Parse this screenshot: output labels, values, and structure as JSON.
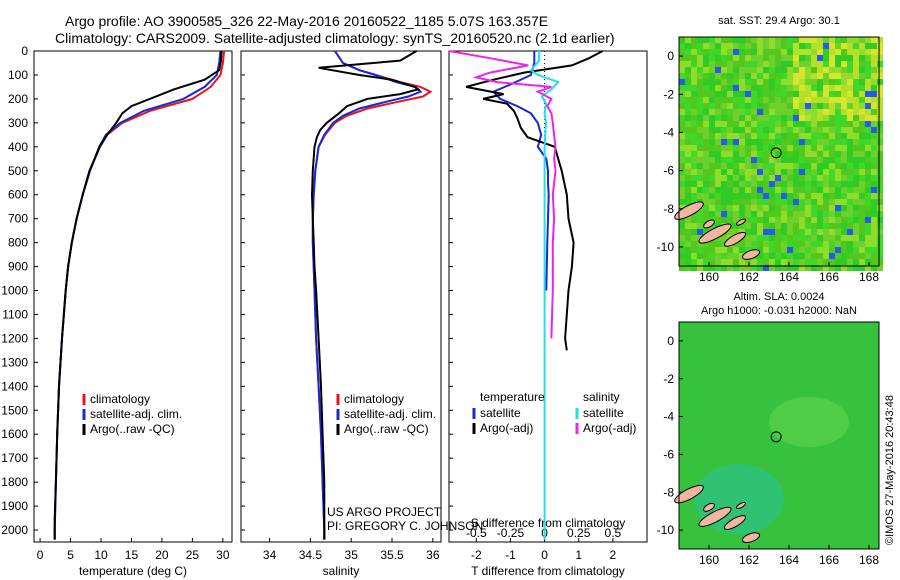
{
  "header": {
    "line1": "Argo profile: AO 3900585_326 22-May-2016 20160522_1185 5.07S 163.357E",
    "line2": "Climatology: CARS2009. Satellite-adjusted climatology: synTS_20160520.nc (2.1d earlier)"
  },
  "depth_ticks": [
    0,
    100,
    200,
    300,
    400,
    500,
    600,
    700,
    800,
    900,
    1000,
    1100,
    1200,
    1300,
    1400,
    1500,
    1600,
    1700,
    1800,
    1900,
    2000
  ],
  "colors": {
    "climatology": "#e8141a",
    "satellite": "#1428dc",
    "argo": "#000000",
    "sat_salinity": "#22e0e8",
    "argo_salinity": "#ee22ee"
  },
  "chart_data": [
    {
      "type": "line",
      "panel": "temperature",
      "xlabel": "temperature (deg C)",
      "ylabel": "",
      "xlim": [
        -1,
        31.5
      ],
      "ylim": [
        2050,
        0
      ],
      "xticks": [
        0,
        5,
        10,
        15,
        20,
        25,
        30
      ],
      "legend": [
        "climatology",
        "satellite-adj. clim.",
        "Argo(..raw -QC)"
      ],
      "legend_position": "lower-center",
      "series": [
        {
          "name": "climatology",
          "color": "#e8141a",
          "depth": [
            0,
            50,
            100,
            150,
            200,
            250,
            300,
            350,
            400,
            500,
            600,
            700,
            800,
            900,
            1000,
            1200,
            1400,
            1600,
            1800,
            2000,
            2040
          ],
          "values": [
            30.2,
            30.0,
            29.6,
            28.0,
            25.0,
            18.0,
            13.5,
            11.0,
            9.8,
            8.2,
            7.0,
            6.0,
            5.2,
            4.6,
            4.2,
            3.6,
            3.1,
            2.8,
            2.6,
            2.4,
            2.4
          ]
        },
        {
          "name": "satellite-adj. clim.",
          "color": "#1428dc",
          "depth": [
            0,
            50,
            100,
            150,
            200,
            250,
            300,
            350,
            400,
            500,
            600,
            700,
            800,
            900,
            1000,
            1200,
            1400,
            1600,
            1800,
            2000,
            2040
          ],
          "values": [
            29.6,
            29.4,
            29.0,
            27.0,
            23.5,
            17.0,
            13.2,
            10.8,
            9.7,
            8.2,
            7.0,
            6.0,
            5.2,
            4.6,
            4.2,
            3.6,
            3.1,
            2.8,
            2.6,
            2.4,
            2.4
          ]
        },
        {
          "name": "Argo(..raw -QC)",
          "color": "#000000",
          "depth": [
            0,
            40,
            80,
            120,
            160,
            200,
            230,
            260,
            300,
            350,
            400,
            500,
            600,
            700,
            800,
            900,
            1000,
            1200,
            1400,
            1600,
            1800,
            1950,
            2040
          ],
          "values": [
            29.8,
            29.7,
            29.4,
            27.0,
            22.0,
            18.0,
            15.0,
            13.5,
            12.5,
            11.0,
            9.8,
            8.1,
            7.0,
            6.0,
            5.2,
            4.6,
            4.2,
            3.6,
            3.1,
            2.8,
            2.6,
            2.4,
            2.4
          ]
        }
      ]
    },
    {
      "type": "line",
      "panel": "salinity",
      "xlabel": "salinity",
      "ylabel": "",
      "xlim": [
        33.65,
        36.1
      ],
      "ylim": [
        2050,
        0
      ],
      "xticks": [
        34,
        34.5,
        35,
        35.5,
        36
      ],
      "xtick_labels": [
        "34",
        "34.5",
        "35",
        "35.5",
        "36"
      ],
      "legend": [
        "climatology",
        "satellite-adj. clim.",
        "Argo(..raw -QC)"
      ],
      "legend_position": "lower-center",
      "annotation": [
        "US ARGO PROJECT",
        "PI: GREGORY C. JOHNSON"
      ],
      "series": [
        {
          "name": "climatology",
          "color": "#e8141a",
          "depth": [
            0,
            50,
            80,
            100,
            130,
            150,
            170,
            190,
            210,
            240,
            270,
            300,
            350,
            400,
            500,
            600,
            700,
            800,
            900,
            1000,
            1200,
            1400,
            1600,
            1800,
            2000,
            2040
          ],
          "values": [
            34.8,
            34.9,
            35.1,
            35.3,
            35.6,
            35.85,
            35.97,
            35.88,
            35.6,
            35.2,
            34.95,
            34.8,
            34.68,
            34.6,
            34.56,
            34.54,
            34.53,
            34.53,
            34.54,
            34.55,
            34.57,
            34.6,
            34.63,
            34.65,
            34.67,
            34.67
          ]
        },
        {
          "name": "satellite-adj. clim.",
          "color": "#1428dc",
          "depth": [
            0,
            50,
            80,
            100,
            130,
            150,
            170,
            190,
            210,
            240,
            270,
            300,
            350,
            400,
            500,
            600,
            700,
            800,
            900,
            1000,
            1200,
            1400,
            1600,
            1800,
            2000,
            2040
          ],
          "values": [
            34.8,
            34.9,
            35.1,
            35.3,
            35.55,
            35.78,
            35.85,
            35.7,
            35.45,
            35.1,
            34.9,
            34.78,
            34.67,
            34.6,
            34.56,
            34.54,
            34.53,
            34.53,
            34.54,
            34.55,
            34.57,
            34.6,
            34.63,
            34.65,
            34.67,
            34.67
          ]
        },
        {
          "name": "Argo(..raw -QC)",
          "color": "#000000",
          "depth": [
            0,
            40,
            70,
            100,
            120,
            150,
            160,
            180,
            200,
            230,
            260,
            300,
            330,
            360,
            400,
            500,
            600,
            700,
            800,
            900,
            1000,
            1200,
            1400,
            1600,
            1800,
            2000,
            2040
          ],
          "values": [
            35.8,
            35.6,
            34.6,
            35.1,
            35.5,
            35.78,
            35.82,
            35.6,
            35.2,
            34.95,
            34.85,
            34.7,
            34.62,
            34.58,
            34.55,
            34.53,
            34.52,
            34.53,
            34.54,
            34.55,
            34.57,
            34.6,
            34.63,
            34.65,
            34.67,
            34.67,
            34.67
          ]
        }
      ]
    },
    {
      "type": "line",
      "panel": "differences",
      "xlabel": "T difference from climatology",
      "xlabel_top": "S difference from climatology",
      "xlim": [
        -2.8,
        3.0
      ],
      "ylim": [
        2050,
        0
      ],
      "xticks": [
        -2,
        -1,
        0,
        1,
        2
      ],
      "xticks_s": [
        -0.5,
        -0.25,
        0,
        0.25,
        0.5
      ],
      "xtick_labels_s": [
        "-0.5",
        "-0.25",
        "0",
        "0.25",
        "0.5"
      ],
      "legend_temperature_title": "temperature",
      "legend_salinity_title": "salinity",
      "legend_temperature": [
        "satellite",
        "Argo(-adj)"
      ],
      "legend_salinity": [
        "satellite",
        "Argo(-adj)"
      ],
      "series": [
        {
          "name": "satellite",
          "group": "temperature",
          "color": "#1428dc",
          "depth": [
            0,
            50,
            100,
            140,
            170,
            200,
            230,
            260,
            300,
            350,
            400,
            450,
            500,
            550,
            600,
            700,
            800,
            1000
          ],
          "values": [
            -0.3,
            -0.3,
            -0.4,
            -1.0,
            -1.5,
            -1.3,
            -0.8,
            -0.4,
            -0.2,
            -0.1,
            -0.2,
            0.05,
            0.1,
            0.1,
            0.12,
            0.1,
            0.08,
            0.05
          ]
        },
        {
          "name": "Argo(-adj)",
          "group": "temperature",
          "color": "#000000",
          "depth": [
            0,
            30,
            60,
            90,
            120,
            150,
            180,
            200,
            220,
            250,
            280,
            320,
            360,
            400,
            450,
            500,
            600,
            700,
            800,
            900,
            1000,
            1100,
            1200,
            1250
          ],
          "values": [
            1.7,
            1.3,
            0.8,
            -0.6,
            -1.5,
            -2.3,
            -1.2,
            -1.8,
            -1.1,
            -0.9,
            -0.8,
            -0.7,
            -0.5,
            0.3,
            0.4,
            0.5,
            0.65,
            0.7,
            0.85,
            0.8,
            0.7,
            0.65,
            0.6,
            0.65
          ]
        },
        {
          "name": "satellite",
          "group": "salinity",
          "color": "#22e0e8",
          "depth": [
            0,
            40,
            80,
            100,
            130,
            160,
            190,
            220,
            260,
            300,
            400,
            600,
            800,
            1000,
            1400,
            1800,
            2040
          ],
          "values": [
            -0.04,
            -0.04,
            -0.1,
            -0.05,
            0.1,
            0.05,
            -0.02,
            0.01,
            0.0,
            0.01,
            0.0,
            0.0,
            0.0,
            0.0,
            0.0,
            0.0,
            0.0
          ]
        },
        {
          "name": "Argo(-adj)",
          "group": "salinity",
          "color": "#ee22ee",
          "depth": [
            0,
            30,
            60,
            90,
            110,
            130,
            150,
            170,
            200,
            230,
            260,
            300,
            350,
            400,
            450,
            500,
            600,
            700,
            800,
            1000,
            1200
          ],
          "values": [
            -0.7,
            -0.4,
            -0.12,
            -0.4,
            -0.5,
            -0.35,
            0.05,
            -0.05,
            0.05,
            0.02,
            0.05,
            0.06,
            0.07,
            0.08,
            0.07,
            0.08,
            0.06,
            0.07,
            0.06,
            0.06,
            0.05
          ]
        }
      ]
    },
    {
      "type": "heatmap",
      "panel": "map-sst",
      "title": "sat. SST: 29.4  Argo: 30.1",
      "xlim": [
        158.5,
        168.5
      ],
      "ylim": [
        -11,
        1
      ],
      "xticks": [
        160,
        162,
        164,
        166,
        168
      ],
      "yticks": [
        0,
        -2,
        -4,
        -6,
        -8,
        -10
      ],
      "marker": {
        "lon": 163.357,
        "lat": -5.07
      }
    },
    {
      "type": "heatmap",
      "panel": "map-sla",
      "title_line1": "Altim. SLA: 0.0024",
      "title_line2": "Argo h1000: -0.031 h2000: NaN",
      "xlim": [
        158.5,
        168.5
      ],
      "ylim": [
        -11,
        1
      ],
      "xticks": [
        160,
        162,
        164,
        166,
        168
      ],
      "yticks": [
        0,
        -2,
        -4,
        -6,
        -8,
        -10
      ],
      "marker": {
        "lon": 163.357,
        "lat": -5.07
      }
    }
  ],
  "footer_stamp": "©IMOS 27-May-2016 20:43:48"
}
